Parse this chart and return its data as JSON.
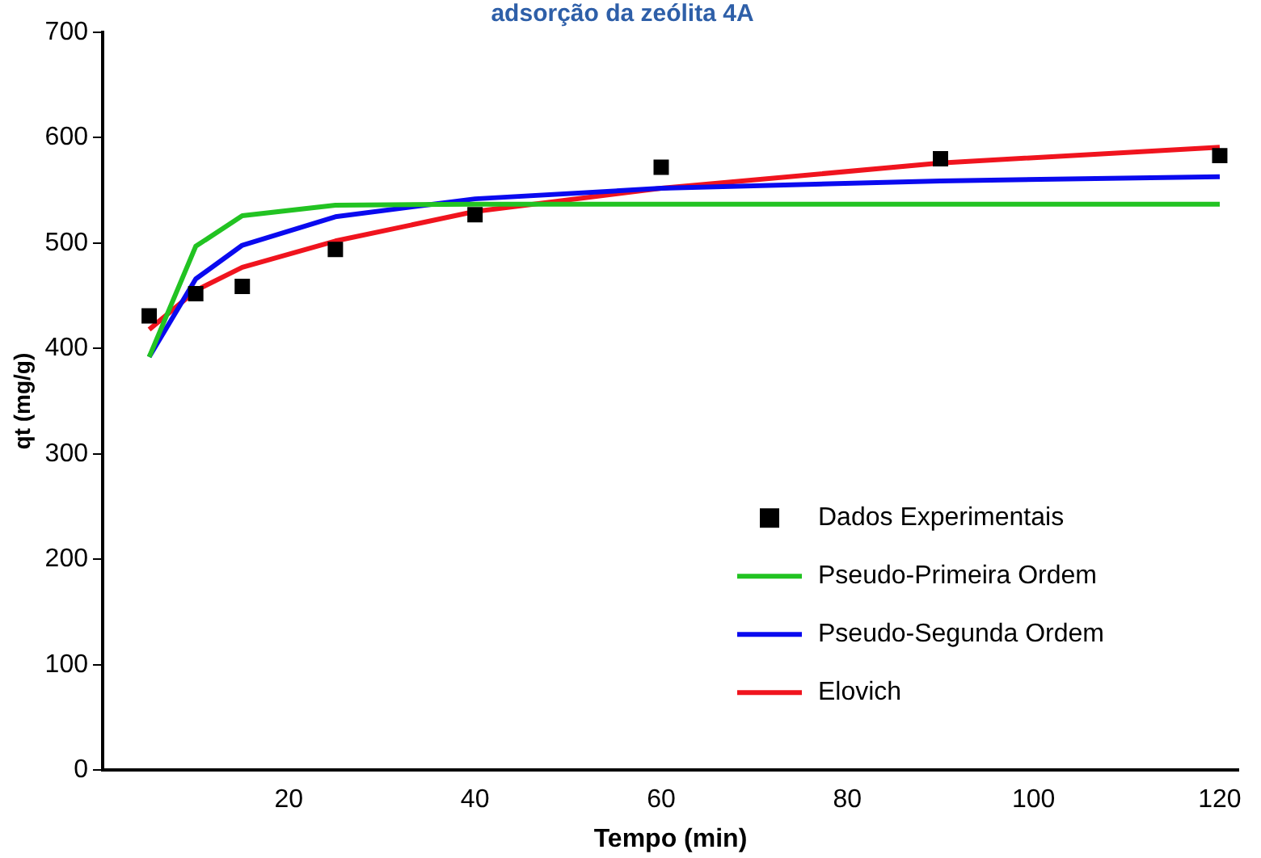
{
  "chart_data": {
    "type": "line",
    "title": "adsorção da zeólita 4A",
    "xlabel": "Tempo (min)",
    "ylabel": "qt (mg/g)",
    "xlim": [
      0,
      122
    ],
    "xticks": [
      20,
      40,
      60,
      80,
      100,
      120
    ],
    "ylim": [
      0,
      700
    ],
    "yticks": [
      0,
      100,
      200,
      300,
      400,
      500,
      600,
      700
    ],
    "grid": false,
    "legend": "bottom right",
    "series": [
      {
        "name": "Dados Experimentais",
        "type": "scatter",
        "marker": "square",
        "color": "#000000",
        "x": [
          5,
          10,
          15,
          25,
          40,
          60,
          90,
          120
        ],
        "values": [
          431,
          452,
          459,
          494,
          527,
          572,
          580,
          583
        ]
      },
      {
        "name": "Pseudo-Primeira Ordem",
        "marker": "none",
        "color": "#22c322",
        "x": [
          5,
          10,
          15,
          25,
          40,
          60,
          90,
          120
        ],
        "values": [
          392,
          497,
          526,
          536,
          537,
          537,
          537,
          537
        ]
      },
      {
        "name": "Pseudo-Segunda Ordem",
        "marker": "none",
        "color": "#0a0aef",
        "x": [
          5,
          10,
          15,
          25,
          40,
          60,
          90,
          120
        ],
        "values": [
          392,
          466,
          498,
          525,
          542,
          552,
          559,
          563
        ]
      },
      {
        "name": "Elovich",
        "marker": "none",
        "color": "#f0141e",
        "x": [
          5,
          10,
          15,
          25,
          40,
          60,
          90,
          120
        ],
        "values": [
          418,
          455,
          477,
          502,
          530,
          552,
          576,
          591
        ]
      }
    ]
  }
}
